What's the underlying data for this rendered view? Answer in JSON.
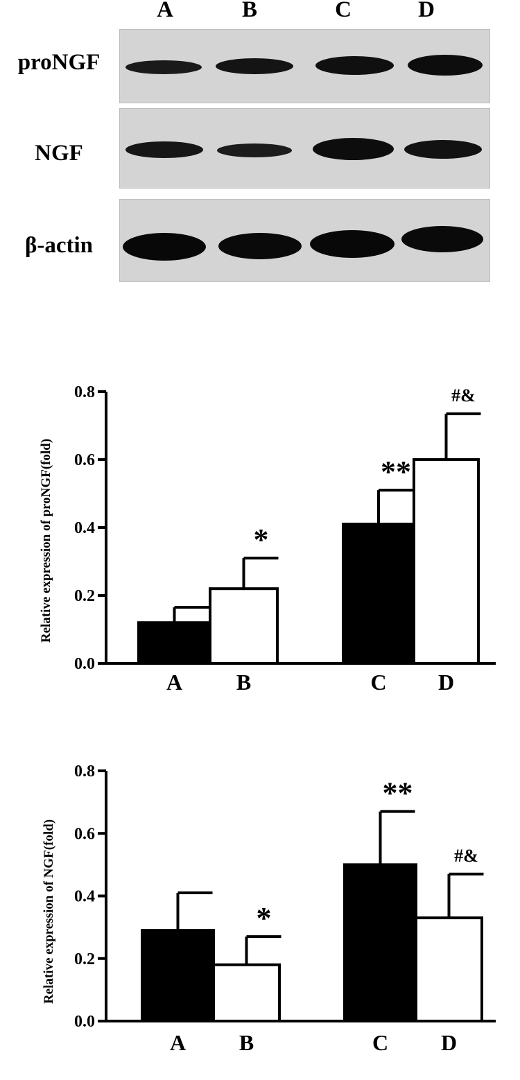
{
  "blot": {
    "lanes": [
      "A",
      "B",
      "C",
      "D"
    ],
    "rows": [
      "proNGF",
      "NGF",
      "β-actin"
    ]
  },
  "chart_data": [
    {
      "type": "bar",
      "categories": [
        "A",
        "B",
        "C",
        "D"
      ],
      "values": [
        0.12,
        0.22,
        0.41,
        0.6
      ],
      "errors": [
        0.045,
        0.09,
        0.1,
        0.135
      ],
      "bar_fills": [
        "#000000",
        "#ffffff",
        "#000000",
        "#ffffff"
      ],
      "annotations": [
        "",
        "*",
        "**",
        "#&"
      ],
      "title": "",
      "xlabel": "",
      "ylabel": "Relative expression of proNGF(fold)",
      "ylim": [
        0,
        0.8
      ],
      "yticks": [
        "0.0",
        "0.2",
        "0.4",
        "0.6",
        "0.8"
      ],
      "grid": false
    },
    {
      "type": "bar",
      "categories": [
        "A",
        "B",
        "C",
        "D"
      ],
      "values": [
        0.29,
        0.18,
        0.5,
        0.33
      ],
      "errors": [
        0.12,
        0.09,
        0.17,
        0.14
      ],
      "bar_fills": [
        "#000000",
        "#ffffff",
        "#000000",
        "#ffffff"
      ],
      "annotations": [
        "",
        "*",
        "**",
        "#&"
      ],
      "title": "",
      "xlabel": "",
      "ylabel": "Relative expression of NGF(fold)",
      "ylim": [
        0,
        0.8
      ],
      "yticks": [
        "0.0",
        "0.2",
        "0.4",
        "0.6",
        "0.8"
      ],
      "grid": false
    }
  ]
}
